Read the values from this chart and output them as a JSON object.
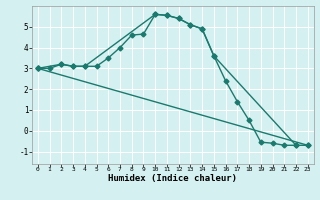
{
  "xlabel": "Humidex (Indice chaleur)",
  "bg_color": "#d5f0f0",
  "line_color": "#1a7a6e",
  "grid_color": "#ffffff",
  "xlim": [
    -0.5,
    23.5
  ],
  "ylim": [
    -1.6,
    6.0
  ],
  "xticks": [
    0,
    1,
    2,
    3,
    4,
    5,
    6,
    7,
    8,
    9,
    10,
    11,
    12,
    13,
    14,
    15,
    16,
    17,
    18,
    19,
    20,
    21,
    22,
    23
  ],
  "yticks": [
    -1,
    0,
    1,
    2,
    3,
    4,
    5
  ],
  "line1_x": [
    0,
    1,
    2,
    3,
    4,
    5,
    6,
    7,
    8,
    9,
    10,
    11,
    12,
    13,
    14,
    15,
    16,
    17,
    18,
    19,
    20,
    21,
    22
  ],
  "line1_y": [
    3.0,
    3.0,
    3.2,
    3.1,
    3.1,
    3.1,
    3.5,
    4.0,
    4.6,
    4.65,
    5.6,
    5.55,
    5.4,
    5.1,
    4.9,
    3.6,
    2.4,
    1.4,
    0.5,
    -0.55,
    -0.6,
    -0.7,
    -0.7
  ],
  "line2_x": [
    0,
    2,
    3,
    4,
    10,
    11,
    12,
    13,
    14,
    15,
    22,
    23
  ],
  "line2_y": [
    3.0,
    3.2,
    3.1,
    3.1,
    5.6,
    5.55,
    5.4,
    5.1,
    4.9,
    3.6,
    -0.7,
    -0.7
  ],
  "line3_x": [
    0,
    23
  ],
  "line3_y": [
    3.0,
    -0.7
  ],
  "marker_size": 2.5,
  "line_width": 1.0
}
